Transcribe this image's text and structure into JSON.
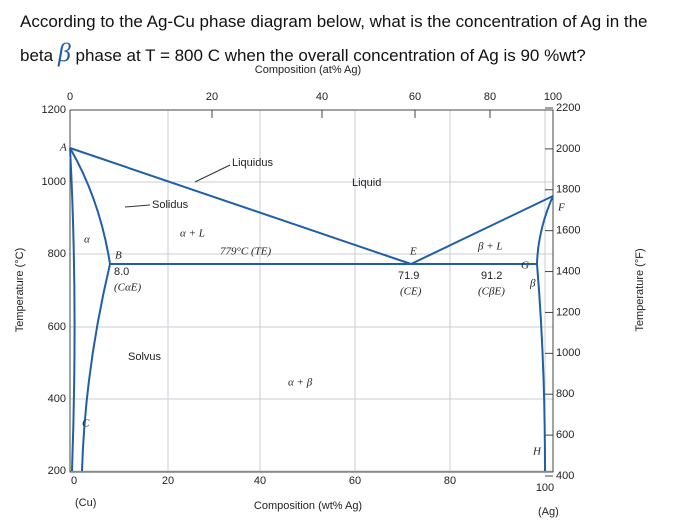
{
  "question": {
    "line1": "According to the Ag-Cu phase diagram below, what is the concentration of Ag in the",
    "line2_start": "beta",
    "beta_symbol": "β",
    "line2_end": "phase at T = 800 C when the overall concentration of Ag is 90 %wt?"
  },
  "diagram": {
    "top_axis": {
      "label": "Composition (at% Ag)",
      "ticks": [
        0,
        20,
        40,
        60,
        80,
        100
      ]
    },
    "bottom_axis": {
      "label": "Composition (wt% Ag)",
      "ticks": [
        0,
        20,
        40,
        60,
        80,
        100
      ],
      "left_end": "(Cu)",
      "right_end": "(Ag)"
    },
    "left_axis": {
      "label": "Temperature (°C)",
      "ticks": [
        1200,
        1000,
        800,
        600,
        400,
        200
      ]
    },
    "right_axis": {
      "label": "Temperature (°F)",
      "ticks": [
        2200,
        2000,
        1800,
        1600,
        1400,
        1200,
        1000,
        800,
        600,
        400
      ]
    },
    "labels": {
      "A": "A",
      "liquidus": "Liquidus",
      "liquid": "Liquid",
      "solidus": "Solidus",
      "alpha_l": "α + L",
      "eutectic_temp": "779°C (TE)",
      "E": "E",
      "beta_l": "β + L",
      "B": "B",
      "c_alpha_value": "8.0",
      "c_alpha_name": "(CαE)",
      "c_e_value": "71.9",
      "c_e_name": "(CE)",
      "c_beta_value": "91.2",
      "c_beta_name": "(CβE)",
      "G": "G",
      "beta": "β",
      "F": "F",
      "alpha": "α",
      "solvus": "Solvus",
      "alpha_beta": "α + β",
      "C": "C",
      "H": "H"
    }
  }
}
